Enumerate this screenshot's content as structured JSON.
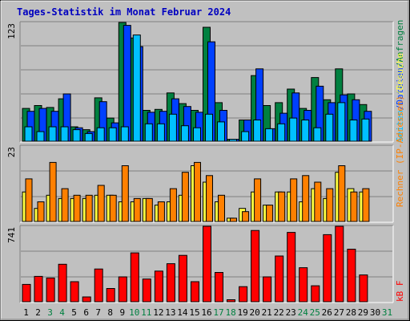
{
  "title": "Tages-Statistik im Monat Februar 2024",
  "colors": {
    "background": "#c0c0c0",
    "title": "#0000c0",
    "hits": "#008040",
    "files": "#0040ff",
    "pages": "#00c0ff",
    "visits": "#ffff40",
    "sites": "#ff8000",
    "kbytes": "#ff0000",
    "weekend_day": "#008040",
    "weekday_day": "#000000"
  },
  "right_labels": {
    "top": [
      "Anfragen",
      "Dateien",
      "Seiten"
    ],
    "middle": [
      "Besuche",
      "Rechner (IP-Adressen)"
    ],
    "bottom": [
      "kB F"
    ]
  },
  "chart_data": [
    {
      "type": "bar",
      "panel": "requests",
      "y_max_label": "123",
      "ylim": [
        0,
        123
      ],
      "categories": [
        "1",
        "2",
        "3",
        "4",
        "5",
        "6",
        "7",
        "8",
        "9",
        "10",
        "11",
        "12",
        "13",
        "14",
        "15",
        "16",
        "17",
        "18",
        "19",
        "20",
        "21",
        "22",
        "23",
        "24",
        "25",
        "26",
        "27",
        "28",
        "29",
        "30",
        "31"
      ],
      "series": [
        {
          "name": "Anfragen",
          "values": [
            34,
            37,
            35,
            44,
            15,
            12,
            45,
            24,
            123,
            107,
            32,
            33,
            50,
            39,
            32,
            118,
            40,
            2,
            22,
            68,
            37,
            40,
            54,
            34,
            66,
            43,
            75,
            49,
            38,
            0,
            0
          ]
        },
        {
          "name": "Dateien",
          "values": [
            31,
            34,
            31,
            49,
            14,
            10,
            41,
            19,
            120,
            98,
            30,
            31,
            44,
            36,
            30,
            103,
            32,
            2,
            22,
            75,
            13,
            29,
            50,
            32,
            57,
            40,
            48,
            43,
            31,
            0,
            0
          ]
        },
        {
          "name": "Seiten",
          "values": [
            15,
            10,
            15,
            15,
            12,
            8,
            14,
            14,
            15,
            110,
            18,
            18,
            28,
            16,
            14,
            28,
            20,
            2,
            10,
            22,
            13,
            18,
            24,
            22,
            14,
            28,
            40,
            22,
            23,
            0,
            0
          ]
        }
      ]
    },
    {
      "type": "bar",
      "panel": "visits",
      "y_max_label": "23",
      "ylim": [
        0,
        23
      ],
      "categories": [
        "1",
        "2",
        "3",
        "4",
        "5",
        "6",
        "7",
        "8",
        "9",
        "10",
        "11",
        "12",
        "13",
        "14",
        "15",
        "16",
        "17",
        "18",
        "19",
        "20",
        "21",
        "22",
        "23",
        "24",
        "25",
        "26",
        "27",
        "28",
        "29",
        "30",
        "31"
      ],
      "series": [
        {
          "name": "Besuche",
          "values": [
            9,
            4,
            8,
            7,
            7,
            7,
            8,
            8,
            6,
            6,
            7,
            5,
            6,
            8,
            17,
            12,
            6,
            1,
            4,
            9,
            5,
            9,
            9,
            6,
            10,
            7,
            15,
            10,
            9,
            0,
            0
          ]
        },
        {
          "name": "Rechner (IP-Adressen)",
          "values": [
            13,
            6,
            18,
            10,
            8,
            8,
            11,
            8,
            17,
            7,
            7,
            6,
            10,
            15,
            18,
            14,
            8,
            1,
            3,
            13,
            5,
            9,
            13,
            14,
            12,
            10,
            17,
            9,
            10,
            0,
            0
          ]
        }
      ]
    },
    {
      "type": "bar",
      "panel": "kbytes",
      "y_max_label": "741",
      "ylim": [
        0,
        741
      ],
      "categories": [
        "1",
        "2",
        "3",
        "4",
        "5",
        "6",
        "7",
        "8",
        "9",
        "10",
        "11",
        "12",
        "13",
        "14",
        "15",
        "16",
        "17",
        "18",
        "19",
        "20",
        "21",
        "22",
        "23",
        "24",
        "25",
        "26",
        "27",
        "28",
        "29",
        "30",
        "31"
      ],
      "series": [
        {
          "name": "kB F",
          "values": [
            170,
            249,
            233,
            368,
            197,
            47,
            322,
            130,
            244,
            480,
            223,
            301,
            374,
            456,
            197,
            741,
            288,
            20,
            148,
            700,
            244,
            449,
            681,
            334,
            157,
            659,
            741,
            516,
            263,
            0,
            0
          ]
        }
      ]
    }
  ],
  "day_labels": [
    "1",
    "2",
    "3",
    "4",
    "5",
    "6",
    "7",
    "8",
    "9",
    "10",
    "11",
    "12",
    "13",
    "14",
    "15",
    "16",
    "17",
    "18",
    "19",
    "20",
    "21",
    "22",
    "23",
    "24",
    "25",
    "26",
    "27",
    "28",
    "29",
    "30",
    "31"
  ],
  "weekend_days": [
    "3",
    "4",
    "10",
    "11",
    "17",
    "18",
    "24",
    "25",
    "31"
  ]
}
